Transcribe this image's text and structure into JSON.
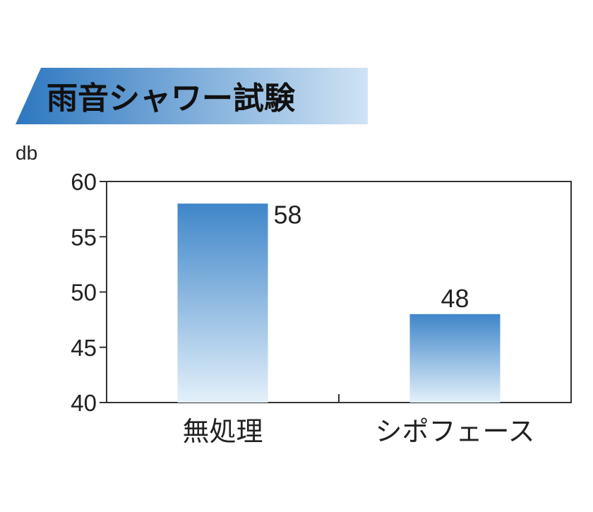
{
  "chart_data": {
    "type": "bar",
    "title": "雨音シャワー試験",
    "ylabel": "db",
    "categories": [
      "無処理",
      "シポフェース"
    ],
    "values": [
      58,
      48
    ],
    "data_labels": [
      "58",
      "48"
    ],
    "ylim": [
      40,
      60
    ],
    "yticks": [
      40,
      45,
      50,
      55,
      60
    ],
    "ytick_labels": [
      "40",
      "45",
      "50",
      "55",
      "60"
    ],
    "grid": false,
    "legend": "none",
    "colors": {
      "bar_top": "#3f86c9",
      "bar_bottom": "#e3f0fa",
      "banner_dark": "#2d77c0",
      "banner_light": "#cfe3f4",
      "axis": "#333333"
    }
  }
}
